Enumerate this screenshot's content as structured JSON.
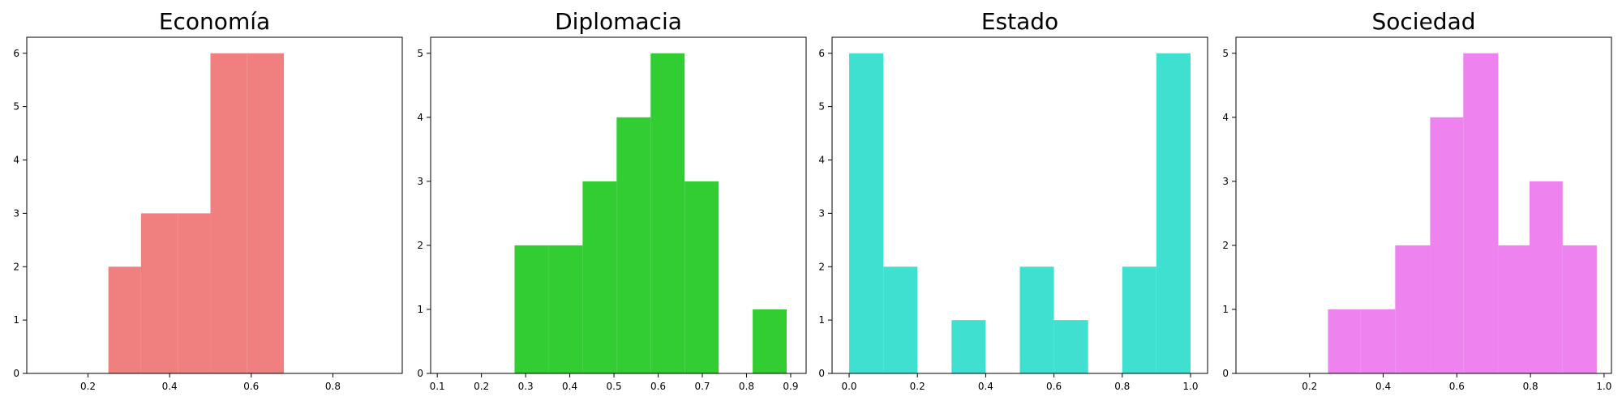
{
  "chart_data": [
    {
      "type": "bar",
      "title": "Economía",
      "color": "#f08080",
      "xlim": [
        0.05,
        0.97
      ],
      "ylim": [
        0,
        6.3
      ],
      "xticks": [
        "0.2",
        "0.4",
        "0.6",
        "0.8"
      ],
      "yticks": [
        "0",
        "1",
        "2",
        "3",
        "4",
        "5",
        "6"
      ],
      "bins": [
        {
          "x0": 0.25,
          "x1": 0.33,
          "count": 2
        },
        {
          "x0": 0.33,
          "x1": 0.42,
          "count": 3
        },
        {
          "x0": 0.42,
          "x1": 0.5,
          "count": 3
        },
        {
          "x0": 0.5,
          "x1": 0.59,
          "count": 6
        },
        {
          "x0": 0.59,
          "x1": 0.68,
          "count": 6
        }
      ]
    },
    {
      "type": "bar",
      "title": "Diplomacia",
      "color": "#32cd32",
      "xlim": [
        0.085,
        0.935
      ],
      "ylim": [
        0,
        5.25
      ],
      "xticks": [
        "0.1",
        "0.2",
        "0.3",
        "0.4",
        "0.5",
        "0.6",
        "0.7",
        "0.8",
        "0.9"
      ],
      "yticks": [
        "0",
        "1",
        "2",
        "3",
        "4",
        "5"
      ],
      "bins": [
        {
          "x0": 0.275,
          "x1": 0.352,
          "count": 2
        },
        {
          "x0": 0.352,
          "x1": 0.429,
          "count": 2
        },
        {
          "x0": 0.429,
          "x1": 0.506,
          "count": 3
        },
        {
          "x0": 0.506,
          "x1": 0.583,
          "count": 4
        },
        {
          "x0": 0.583,
          "x1": 0.66,
          "count": 5
        },
        {
          "x0": 0.66,
          "x1": 0.737,
          "count": 3
        },
        {
          "x0": 0.737,
          "x1": 0.814,
          "count": 0
        },
        {
          "x0": 0.814,
          "x1": 0.891,
          "count": 1
        }
      ]
    },
    {
      "type": "bar",
      "title": "Estado",
      "color": "#40e0d0",
      "xlim": [
        -0.05,
        1.05
      ],
      "ylim": [
        0,
        6.3
      ],
      "xticks": [
        "0.0",
        "0.2",
        "0.4",
        "0.6",
        "0.8",
        "1.0"
      ],
      "yticks": [
        "0",
        "1",
        "2",
        "3",
        "4",
        "5",
        "6"
      ],
      "bins": [
        {
          "x0": 0.0,
          "x1": 0.1,
          "count": 6
        },
        {
          "x0": 0.1,
          "x1": 0.2,
          "count": 2
        },
        {
          "x0": 0.2,
          "x1": 0.3,
          "count": 0
        },
        {
          "x0": 0.3,
          "x1": 0.4,
          "count": 1
        },
        {
          "x0": 0.4,
          "x1": 0.5,
          "count": 0
        },
        {
          "x0": 0.5,
          "x1": 0.6,
          "count": 2
        },
        {
          "x0": 0.6,
          "x1": 0.7,
          "count": 1
        },
        {
          "x0": 0.7,
          "x1": 0.8,
          "count": 0
        },
        {
          "x0": 0.8,
          "x1": 0.9,
          "count": 2
        },
        {
          "x0": 0.9,
          "x1": 1.0,
          "count": 6
        }
      ]
    },
    {
      "type": "bar",
      "title": "Sociedad",
      "color": "#ee82ee",
      "xlim": [
        0.0,
        1.02
      ],
      "ylim": [
        0,
        5.25
      ],
      "xticks": [
        "0.2",
        "0.4",
        "0.6",
        "0.8",
        "1.0"
      ],
      "yticks": [
        "0",
        "1",
        "2",
        "3",
        "4",
        "5"
      ],
      "bins": [
        {
          "x0": 0.25,
          "x1": 0.3375,
          "count": 1
        },
        {
          "x0": 0.3375,
          "x1": 0.4325,
          "count": 1
        },
        {
          "x0": 0.4325,
          "x1": 0.5275,
          "count": 2
        },
        {
          "x0": 0.5275,
          "x1": 0.6175,
          "count": 4
        },
        {
          "x0": 0.6175,
          "x1": 0.7125,
          "count": 5
        },
        {
          "x0": 0.7125,
          "x1": 0.7975,
          "count": 2
        },
        {
          "x0": 0.7975,
          "x1": 0.8875,
          "count": 3
        },
        {
          "x0": 0.8875,
          "x1": 0.98,
          "count": 2
        }
      ]
    }
  ]
}
